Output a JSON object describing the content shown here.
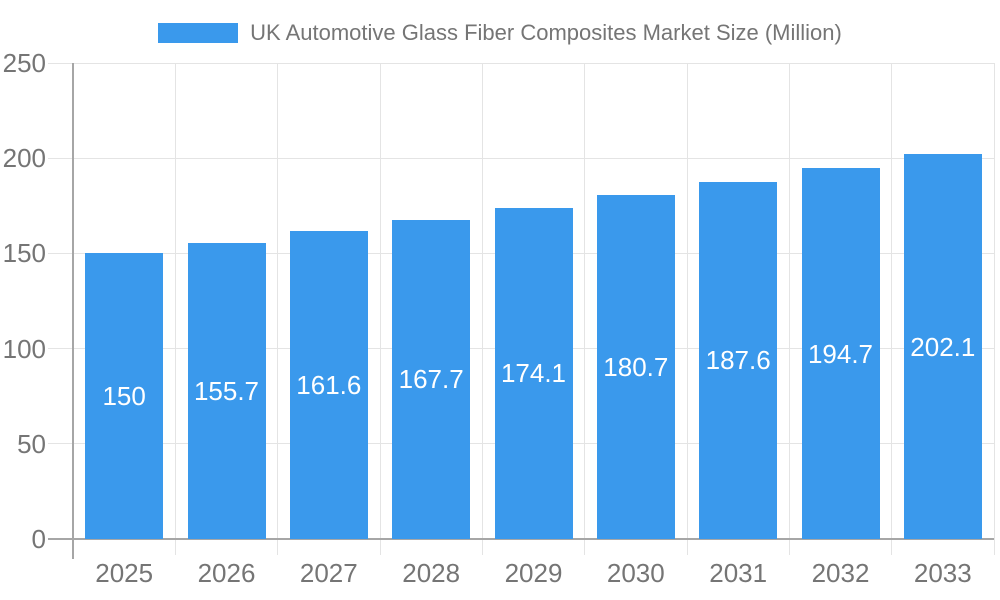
{
  "chart_data": {
    "type": "bar",
    "title": "UK Automotive Glass Fiber Composites Market Size (Million)",
    "categories": [
      "2025",
      "2026",
      "2027",
      "2028",
      "2029",
      "2030",
      "2031",
      "2032",
      "2033"
    ],
    "values": [
      150,
      155.7,
      161.6,
      167.7,
      174.1,
      180.7,
      187.6,
      194.7,
      202.1
    ],
    "data_labels": [
      "150",
      "155.7",
      "161.6",
      "167.7",
      "174.1",
      "180.7",
      "187.6",
      "194.7",
      "202.1"
    ],
    "xlabel": "",
    "ylabel": "",
    "ylim": [
      0,
      250
    ],
    "y_ticks": [
      "0",
      "50",
      "100",
      "150",
      "200",
      "250"
    ],
    "grid": true,
    "legend_position": "top-center",
    "colors": {
      "bar": "#3a99ec",
      "bar_label": "#ffffff",
      "axis_text": "#757575",
      "grid_line": "#e4e4e4",
      "axis_line": "#a6a6a6",
      "background": "#ffffff"
    }
  }
}
